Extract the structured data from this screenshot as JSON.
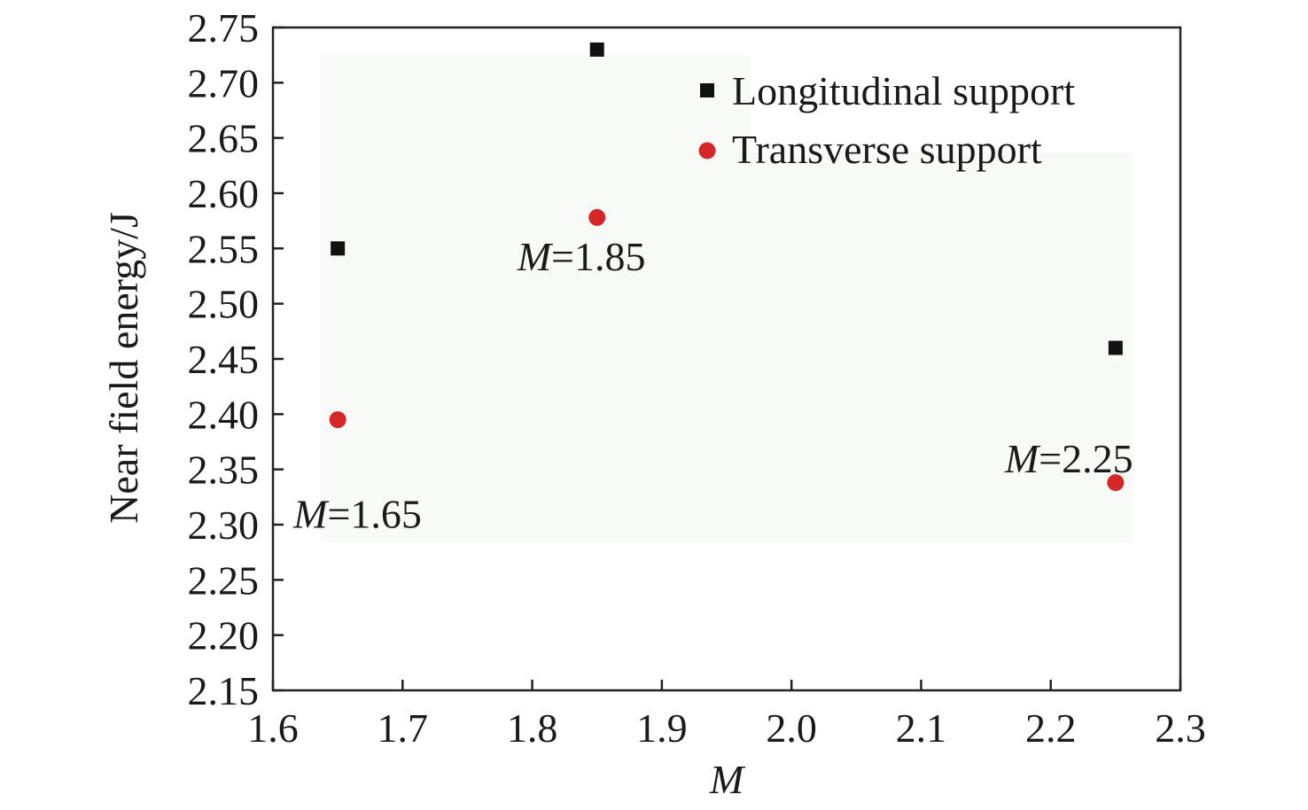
{
  "chart_data": {
    "type": "scatter",
    "title": "",
    "xlabel": "M",
    "ylabel": "Near field energy/J",
    "xlim": [
      1.6,
      2.3
    ],
    "ylim": [
      2.15,
      2.75
    ],
    "xticks": [
      "1.6",
      "1.7",
      "1.8",
      "1.9",
      "2.0",
      "2.1",
      "2.2",
      "2.3"
    ],
    "yticks": [
      "2.15",
      "2.20",
      "2.25",
      "2.30",
      "2.35",
      "2.40",
      "2.45",
      "2.50",
      "2.55",
      "2.60",
      "2.65",
      "2.70",
      "2.75"
    ],
    "grid": false,
    "legend_position": "top-right",
    "series": [
      {
        "name": "Longitudinal support",
        "marker": "square",
        "color": "#111111",
        "x": [
          1.65,
          1.85,
          2.25
        ],
        "y": [
          2.55,
          2.73,
          2.46
        ]
      },
      {
        "name": "Transverse support",
        "marker": "circle",
        "color": "#d62728",
        "x": [
          1.65,
          1.85,
          2.25
        ],
        "y": [
          2.395,
          2.578,
          2.338
        ]
      }
    ],
    "annotations": [
      {
        "var": "M",
        "text": "=1.65",
        "x": 1.65,
        "y": 2.31
      },
      {
        "var": "M",
        "text": "=1.85",
        "x": 1.85,
        "y": 2.543
      },
      {
        "var": "M",
        "text": "=2.25",
        "x": 2.25,
        "y": 2.36
      }
    ]
  }
}
